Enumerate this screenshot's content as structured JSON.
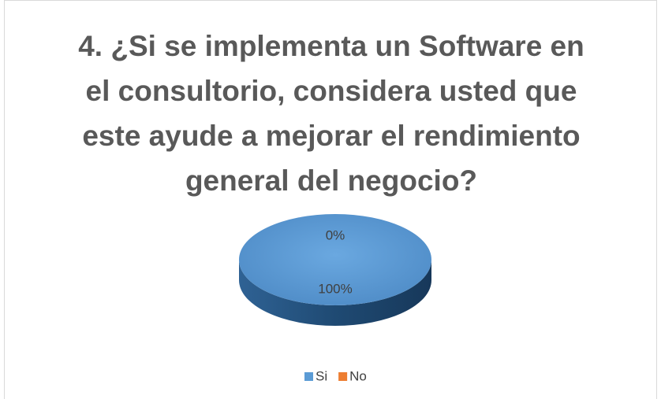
{
  "chart_data": {
    "type": "pie",
    "title": "4. ¿Si se implementa un Software en el consultorio, considera usted que este ayude a mejorar el rendimiento general del negocio?",
    "categories": [
      "Si",
      "No"
    ],
    "values": [
      100,
      0
    ],
    "value_labels": [
      "100%",
      "0%"
    ],
    "colors": [
      "#5b9bd5",
      "#ed7d31"
    ],
    "legend": "bottom"
  }
}
